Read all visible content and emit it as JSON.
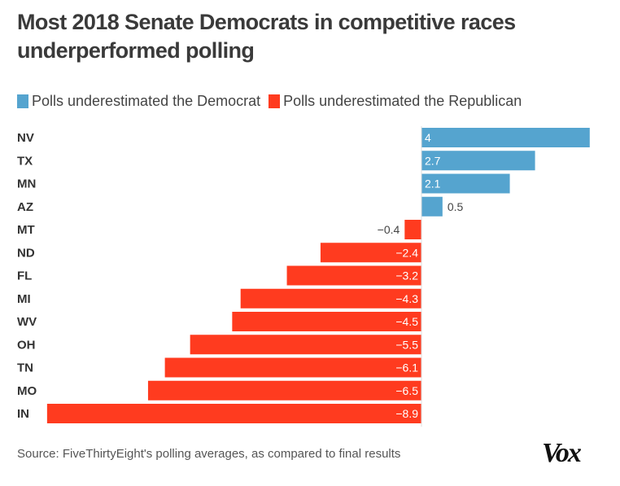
{
  "chart_data": {
    "type": "bar",
    "orientation": "horizontal",
    "title": "Most 2018 Senate Democrats in competitive races underperformed polling",
    "xlabel": "",
    "ylabel": "",
    "categories": [
      "NV",
      "TX",
      "MN",
      "AZ",
      "MT",
      "ND",
      "FL",
      "MI",
      "WV",
      "OH",
      "TN",
      "MO",
      "IN"
    ],
    "values": [
      4,
      2.7,
      2.1,
      0.5,
      -0.4,
      -2.4,
      -3.2,
      -4.3,
      -4.5,
      -5.5,
      -6.1,
      -6.5,
      -8.9
    ],
    "value_labels": [
      "4",
      "2.7",
      "2.1",
      "0.5",
      "−0.4",
      "−2.4",
      "−3.2",
      "−4.3",
      "−4.5",
      "−5.5",
      "−6.1",
      "−6.5",
      "−8.9"
    ],
    "xlim": [
      -8.9,
      4
    ],
    "grid": false,
    "legend": [
      {
        "label": "Polls underestimated the Democrat",
        "color": "#55a4cf"
      },
      {
        "label": "Polls underestimated the Republican",
        "color": "#ff3b1f"
      }
    ],
    "legend_position": "top-left",
    "colors": {
      "positive": "#55a4cf",
      "negative": "#ff3b1f"
    }
  },
  "source": "Source: FiveThirtyEight's polling averages, as compared to final results",
  "logo": "Vox"
}
